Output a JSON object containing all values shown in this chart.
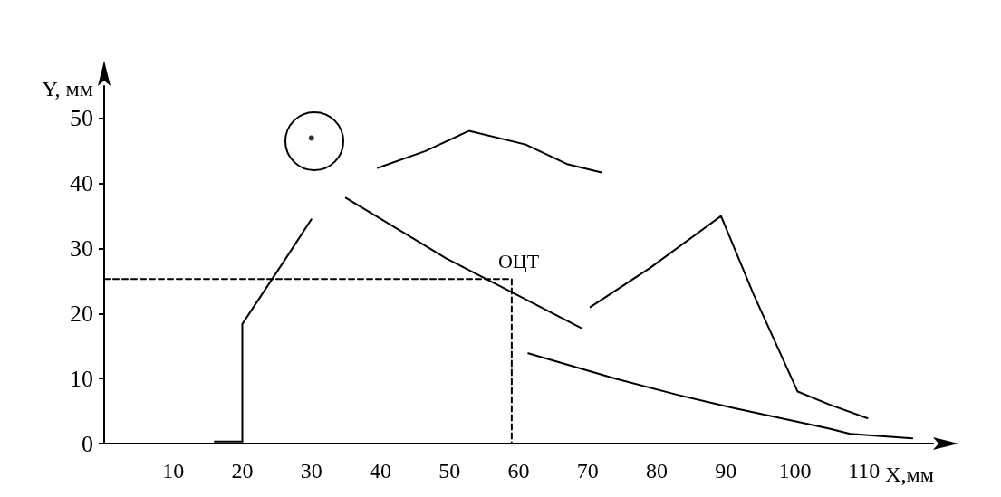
{
  "chart_data": {
    "type": "line",
    "xlabel": "X,мм",
    "ylabel": "Y, мм",
    "xlim": [
      0,
      120
    ],
    "ylim": [
      0,
      55
    ],
    "xticks": [
      10,
      20,
      30,
      40,
      50,
      60,
      70,
      80,
      90,
      100,
      110
    ],
    "yticks": [
      0,
      10,
      20,
      30,
      40,
      50
    ],
    "grid": false,
    "marker": "none",
    "line_style": "solid",
    "annotations": [
      "ОЦТ"
    ],
    "series": [
      {
        "color": "#000000",
        "x": [
          16,
          20
        ],
        "values": [
          0.3,
          0.3
        ]
      },
      {
        "color": "#000000",
        "x": [
          20,
          20,
          20,
          26,
          30
        ],
        "values": [
          0.3,
          10.5,
          18.4,
          28,
          34.5
        ]
      },
      {
        "color": "#000000",
        "x": [
          35,
          49.5,
          69
        ],
        "values": [
          37.8,
          28.5,
          17.8
        ]
      },
      {
        "color": "#000000",
        "x": [
          39.6,
          46.5,
          52.8,
          61,
          67,
          72
        ],
        "values": [
          42.4,
          45,
          48.1,
          46,
          43,
          41.7
        ]
      },
      {
        "color": "#000000",
        "x": [
          70.4,
          79,
          89.3,
          94,
          100.4,
          105,
          110.5
        ],
        "values": [
          21,
          27,
          35,
          23,
          8,
          6,
          3.9
        ]
      },
      {
        "color": "#000000",
        "x": [
          61.4,
          74,
          83,
          91,
          105,
          108,
          117
        ],
        "values": [
          13.9,
          10,
          7.5,
          5.5,
          2.3,
          1.5,
          0.8
        ]
      },
      {
        "type": "scatter",
        "color": "#000000",
        "x": [
          30
        ],
        "values": [
          47
        ]
      },
      {
        "type": "line",
        "line_style": "dashed",
        "color": "#000000",
        "x": [
          0,
          59,
          59
        ],
        "values": [
          25.3,
          25.3,
          0
        ]
      }
    ]
  }
}
